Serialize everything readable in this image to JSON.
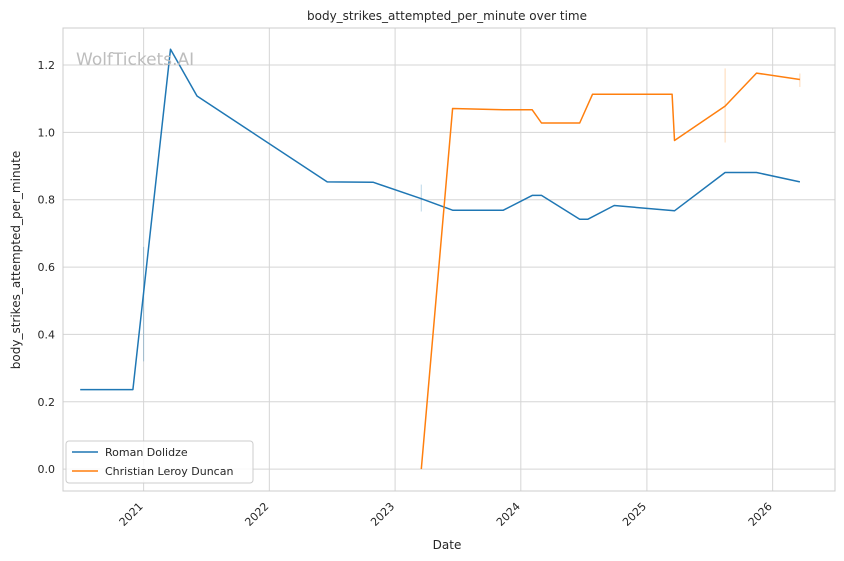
{
  "chart_data": {
    "type": "line",
    "title": "body_strikes_attempted_per_minute over time",
    "xlabel": "Date",
    "ylabel": "body_strikes_attempted_per_minute",
    "watermark": "WolfTickets.AI",
    "x_ticks": [
      "2021",
      "2022",
      "2023",
      "2024",
      "2025",
      "2026"
    ],
    "y_ticks": [
      "0.0",
      "0.2",
      "0.4",
      "0.6",
      "0.8",
      "1.0",
      "1.2"
    ],
    "xlim": [
      "2020-05-12",
      "2026-07-01"
    ],
    "ylim": [
      -0.065,
      1.31
    ],
    "grid": true,
    "legend_position": "lower-left",
    "colors": {
      "Roman Dolidze": "#1f77b4",
      "Christian Leroy Duncan": "#ff7f0e"
    },
    "series": [
      {
        "name": "Roman Dolidze",
        "color": "#1f77b4",
        "points": [
          [
            "2020-07-01",
            0.236
          ],
          [
            "2020-12-01",
            0.236
          ],
          [
            "2021-03-20",
            1.247
          ],
          [
            "2021-06-05",
            1.108
          ],
          [
            "2022-06-18",
            0.853
          ],
          [
            "2022-10-29",
            0.852
          ],
          [
            "2023-03-18",
            0.803
          ],
          [
            "2023-06-17",
            0.769
          ],
          [
            "2023-11-11",
            0.769
          ],
          [
            "2024-02-03",
            0.813
          ],
          [
            "2024-03-01",
            0.813
          ],
          [
            "2024-06-20",
            0.742
          ],
          [
            "2024-07-13",
            0.742
          ],
          [
            "2024-09-28",
            0.783
          ],
          [
            "2025-03-22",
            0.767
          ],
          [
            "2025-08-16",
            0.881
          ],
          [
            "2025-11-15",
            0.881
          ],
          [
            "2026-03-21",
            0.853
          ]
        ]
      },
      {
        "name": "Christian Leroy Duncan",
        "color": "#ff7f0e",
        "points": [
          [
            "2023-03-18",
            0.0
          ],
          [
            "2023-06-17",
            1.071
          ],
          [
            "2023-11-11",
            1.067
          ],
          [
            "2024-02-03",
            1.067
          ],
          [
            "2024-03-01",
            1.028
          ],
          [
            "2024-06-20",
            1.028
          ],
          [
            "2024-07-27",
            1.113
          ],
          [
            "2025-03-15",
            1.113
          ],
          [
            "2025-03-22",
            0.976
          ],
          [
            "2025-08-16",
            1.078
          ],
          [
            "2025-11-15",
            1.176
          ],
          [
            "2026-03-21",
            1.157
          ]
        ]
      }
    ],
    "error_bars": [
      {
        "series": "Roman Dolidze",
        "x": "2021-01-01",
        "y": [
          0.32,
          0.66
        ]
      },
      {
        "series": "Roman Dolidze",
        "x": "2023-03-18",
        "y": [
          0.765,
          0.845
        ]
      },
      {
        "series": "Christian Leroy Duncan",
        "x": "2025-08-16",
        "y": [
          0.97,
          1.19
        ]
      },
      {
        "series": "Christian Leroy Duncan",
        "x": "2026-03-21",
        "y": [
          1.135,
          1.175
        ]
      }
    ]
  }
}
